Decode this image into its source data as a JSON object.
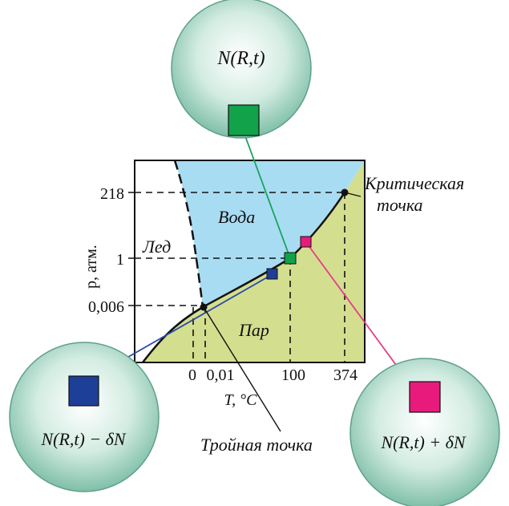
{
  "colors": {
    "water": "#a8dcf3",
    "vapor": "#d4de8f",
    "ice": "#ffffff",
    "sphere_center": "#ffffff",
    "sphere_edge": "#87c3ad",
    "green_marker": "#12a24a",
    "blue_marker": "#1d3f97",
    "pink_marker": "#e81b7c",
    "green_line": "#1aa35a",
    "blue_line": "#2b4ba6",
    "pink_line": "#e53b88"
  },
  "axes": {
    "y_label": "p,  атм.",
    "x_label": "T, °C",
    "y_ticks": [
      "218",
      "1",
      "0,006"
    ],
    "x_ticks": [
      "0",
      "0,01",
      "100",
      "374"
    ]
  },
  "regions": {
    "water": "Вода",
    "ice": "Лед",
    "vapor": "Пар"
  },
  "annotations": {
    "critical_point_line1": "Критическая",
    "critical_point_line2": "точка",
    "triple_point": "Тройная точка"
  },
  "spheres": {
    "top": "N(R,t)",
    "bottom_left": "N(R,t) − δN",
    "bottom_right": "N(R,t) + δN"
  }
}
